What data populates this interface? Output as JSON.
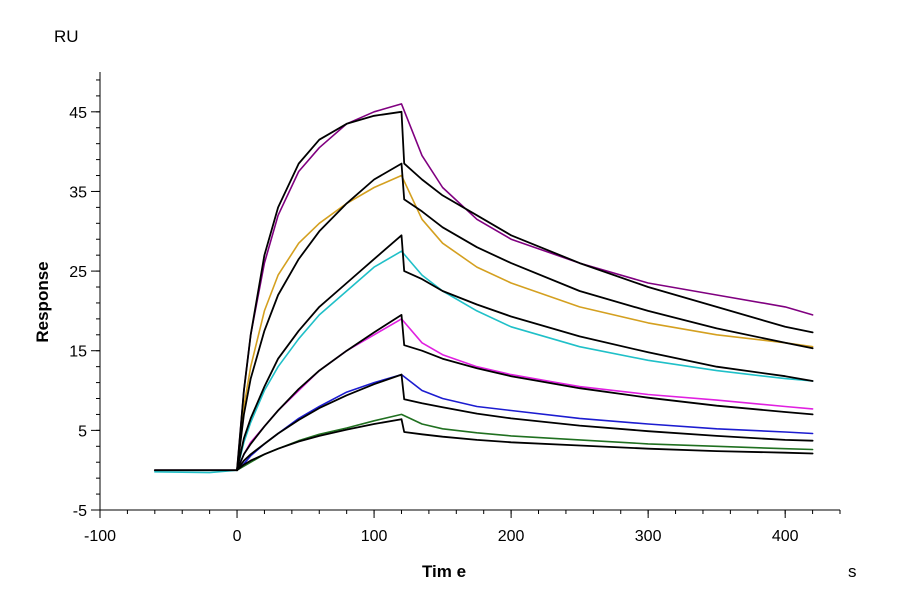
{
  "chart_data": {
    "type": "line",
    "title": "",
    "xlabel": "Tim e",
    "ylabel": "Response",
    "x_unit": "s",
    "y_unit": "RU",
    "xlim": [
      -100,
      440
    ],
    "ylim": [
      -5,
      50
    ],
    "x_ticks": [
      -100,
      0,
      100,
      200,
      300,
      400
    ],
    "y_ticks": [
      -5,
      5,
      15,
      25,
      35,
      45
    ],
    "grid": false,
    "legend": "none",
    "series": [
      {
        "kind": "measured",
        "color": "#800080",
        "points": [
          [
            -60,
            0
          ],
          [
            0,
            0
          ],
          [
            5,
            10
          ],
          [
            10,
            17
          ],
          [
            20,
            26
          ],
          [
            30,
            32
          ],
          [
            45,
            37.5
          ],
          [
            60,
            40.5
          ],
          [
            80,
            43.5
          ],
          [
            100,
            45
          ],
          [
            120,
            46
          ],
          [
            135,
            39.5
          ],
          [
            150,
            35.5
          ],
          [
            175,
            31.5
          ],
          [
            200,
            29
          ],
          [
            250,
            26
          ],
          [
            300,
            23.5
          ],
          [
            350,
            22
          ],
          [
            400,
            20.5
          ],
          [
            420,
            19.5
          ]
        ]
      },
      {
        "kind": "measured",
        "color": "#d4a020",
        "points": [
          [
            0,
            0
          ],
          [
            5,
            8
          ],
          [
            10,
            13
          ],
          [
            20,
            20
          ],
          [
            30,
            24.5
          ],
          [
            45,
            28.5
          ],
          [
            60,
            31
          ],
          [
            80,
            33.5
          ],
          [
            100,
            35.5
          ],
          [
            120,
            37
          ],
          [
            135,
            31.5
          ],
          [
            150,
            28.5
          ],
          [
            175,
            25.5
          ],
          [
            200,
            23.5
          ],
          [
            250,
            20.5
          ],
          [
            300,
            18.5
          ],
          [
            350,
            17
          ],
          [
            400,
            16
          ],
          [
            420,
            15.5
          ]
        ]
      },
      {
        "kind": "measured",
        "color": "#20c0c8",
        "points": [
          [
            -60,
            -0.2
          ],
          [
            -20,
            -0.3
          ],
          [
            0,
            0
          ],
          [
            5,
            3.5
          ],
          [
            10,
            6
          ],
          [
            20,
            10
          ],
          [
            30,
            13
          ],
          [
            45,
            16.5
          ],
          [
            60,
            19.5
          ],
          [
            80,
            22.5
          ],
          [
            100,
            25.5
          ],
          [
            120,
            27.5
          ],
          [
            135,
            24.5
          ],
          [
            150,
            22.5
          ],
          [
            175,
            20
          ],
          [
            200,
            18
          ],
          [
            250,
            15.5
          ],
          [
            300,
            13.8
          ],
          [
            350,
            12.5
          ],
          [
            400,
            11.5
          ],
          [
            420,
            11.2
          ]
        ]
      },
      {
        "kind": "measured",
        "color": "#e020e0",
        "points": [
          [
            0,
            0
          ],
          [
            5,
            2
          ],
          [
            10,
            3.5
          ],
          [
            20,
            5.5
          ],
          [
            30,
            7.5
          ],
          [
            45,
            10
          ],
          [
            60,
            12.5
          ],
          [
            80,
            15
          ],
          [
            100,
            17
          ],
          [
            120,
            19
          ],
          [
            135,
            16
          ],
          [
            150,
            14.5
          ],
          [
            175,
            13
          ],
          [
            200,
            12
          ],
          [
            250,
            10.5
          ],
          [
            300,
            9.5
          ],
          [
            350,
            8.8
          ],
          [
            400,
            8
          ],
          [
            420,
            7.7
          ]
        ]
      },
      {
        "kind": "measured",
        "color": "#1c1cd0",
        "points": [
          [
            0,
            0
          ],
          [
            5,
            0.8
          ],
          [
            10,
            1.8
          ],
          [
            20,
            3.3
          ],
          [
            30,
            4.6
          ],
          [
            45,
            6.5
          ],
          [
            60,
            8
          ],
          [
            80,
            9.8
          ],
          [
            100,
            11
          ],
          [
            120,
            12
          ],
          [
            135,
            10
          ],
          [
            150,
            9
          ],
          [
            175,
            8
          ],
          [
            200,
            7.5
          ],
          [
            250,
            6.5
          ],
          [
            300,
            5.8
          ],
          [
            350,
            5.2
          ],
          [
            400,
            4.8
          ],
          [
            420,
            4.6
          ]
        ]
      },
      {
        "kind": "measured",
        "color": "#207020",
        "points": [
          [
            0,
            0
          ],
          [
            10,
            1
          ],
          [
            20,
            2
          ],
          [
            30,
            2.7
          ],
          [
            45,
            3.7
          ],
          [
            60,
            4.5
          ],
          [
            80,
            5.3
          ],
          [
            100,
            6.2
          ],
          [
            120,
            7
          ],
          [
            135,
            5.8
          ],
          [
            150,
            5.2
          ],
          [
            175,
            4.7
          ],
          [
            200,
            4.3
          ],
          [
            250,
            3.8
          ],
          [
            300,
            3.3
          ],
          [
            350,
            3
          ],
          [
            400,
            2.7
          ],
          [
            420,
            2.6
          ]
        ]
      },
      {
        "kind": "fit",
        "color": "#000000",
        "points": [
          [
            -60,
            0
          ],
          [
            0,
            0
          ],
          [
            5,
            10
          ],
          [
            10,
            17
          ],
          [
            20,
            27
          ],
          [
            30,
            33
          ],
          [
            45,
            38.5
          ],
          [
            60,
            41.5
          ],
          [
            80,
            43.5
          ],
          [
            100,
            44.5
          ],
          [
            120,
            45
          ],
          [
            122,
            38.5
          ],
          [
            135,
            36.5
          ],
          [
            150,
            34.5
          ],
          [
            175,
            32
          ],
          [
            200,
            29.5
          ],
          [
            250,
            26
          ],
          [
            300,
            23
          ],
          [
            350,
            20.5
          ],
          [
            400,
            18
          ],
          [
            420,
            17.3
          ]
        ]
      },
      {
        "kind": "fit",
        "color": "#000000",
        "points": [
          [
            0,
            0
          ],
          [
            5,
            7
          ],
          [
            10,
            11.5
          ],
          [
            20,
            17.5
          ],
          [
            30,
            22
          ],
          [
            45,
            26.5
          ],
          [
            60,
            30
          ],
          [
            80,
            33.5
          ],
          [
            100,
            36.5
          ],
          [
            120,
            38.5
          ],
          [
            122,
            34
          ],
          [
            135,
            32.5
          ],
          [
            150,
            30.5
          ],
          [
            175,
            28
          ],
          [
            200,
            26
          ],
          [
            250,
            22.5
          ],
          [
            300,
            20
          ],
          [
            350,
            17.8
          ],
          [
            400,
            16
          ],
          [
            420,
            15.3
          ]
        ]
      },
      {
        "kind": "fit",
        "color": "#000000",
        "points": [
          [
            0,
            0
          ],
          [
            5,
            4
          ],
          [
            10,
            6.5
          ],
          [
            20,
            10.5
          ],
          [
            30,
            14
          ],
          [
            45,
            17.5
          ],
          [
            60,
            20.5
          ],
          [
            80,
            23.5
          ],
          [
            100,
            26.5
          ],
          [
            120,
            29.5
          ],
          [
            122,
            25
          ],
          [
            135,
            24
          ],
          [
            150,
            22.5
          ],
          [
            175,
            20.8
          ],
          [
            200,
            19.3
          ],
          [
            250,
            16.8
          ],
          [
            300,
            14.8
          ],
          [
            350,
            13
          ],
          [
            400,
            11.8
          ],
          [
            420,
            11.2
          ]
        ]
      },
      {
        "kind": "fit",
        "color": "#000000",
        "points": [
          [
            0,
            0
          ],
          [
            5,
            2
          ],
          [
            10,
            3.3
          ],
          [
            20,
            5.5
          ],
          [
            30,
            7.5
          ],
          [
            45,
            10.2
          ],
          [
            60,
            12.5
          ],
          [
            80,
            15
          ],
          [
            100,
            17.3
          ],
          [
            120,
            19.5
          ],
          [
            122,
            15.7
          ],
          [
            135,
            15
          ],
          [
            150,
            14
          ],
          [
            175,
            12.8
          ],
          [
            200,
            11.8
          ],
          [
            250,
            10.3
          ],
          [
            300,
            9.1
          ],
          [
            350,
            8.1
          ],
          [
            400,
            7.3
          ],
          [
            420,
            7
          ]
        ]
      },
      {
        "kind": "fit",
        "color": "#000000",
        "points": [
          [
            0,
            0
          ],
          [
            5,
            1.2
          ],
          [
            10,
            2
          ],
          [
            20,
            3.3
          ],
          [
            30,
            4.6
          ],
          [
            45,
            6.3
          ],
          [
            60,
            7.8
          ],
          [
            80,
            9.4
          ],
          [
            100,
            10.8
          ],
          [
            120,
            12
          ],
          [
            122,
            8.9
          ],
          [
            135,
            8.4
          ],
          [
            150,
            7.9
          ],
          [
            175,
            7.1
          ],
          [
            200,
            6.5
          ],
          [
            250,
            5.6
          ],
          [
            300,
            4.9
          ],
          [
            350,
            4.3
          ],
          [
            400,
            3.8
          ],
          [
            420,
            3.7
          ]
        ]
      },
      {
        "kind": "fit",
        "color": "#000000",
        "points": [
          [
            0,
            0
          ],
          [
            5,
            0.7
          ],
          [
            10,
            1.2
          ],
          [
            20,
            2
          ],
          [
            30,
            2.7
          ],
          [
            45,
            3.6
          ],
          [
            60,
            4.3
          ],
          [
            80,
            5.1
          ],
          [
            100,
            5.8
          ],
          [
            120,
            6.4
          ],
          [
            122,
            4.8
          ],
          [
            135,
            4.5
          ],
          [
            150,
            4.2
          ],
          [
            175,
            3.8
          ],
          [
            200,
            3.5
          ],
          [
            250,
            3.1
          ],
          [
            300,
            2.7
          ],
          [
            350,
            2.4
          ],
          [
            400,
            2.2
          ],
          [
            420,
            2.1
          ]
        ]
      }
    ]
  }
}
